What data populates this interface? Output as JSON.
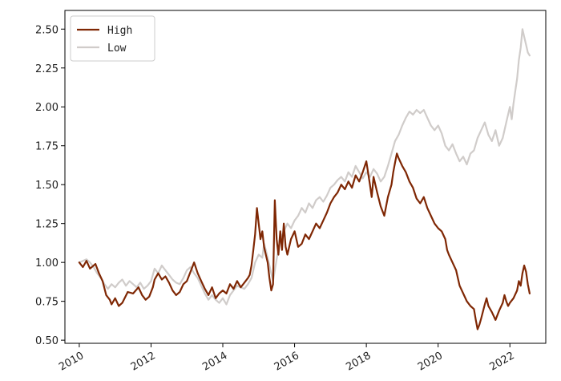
{
  "chart_data": {
    "type": "line",
    "title": "",
    "xlabel": "",
    "ylabel": "",
    "xlim": [
      2009.6,
      2023.0
    ],
    "ylim": [
      0.48,
      2.62
    ],
    "grid": false,
    "legend_position": "top-left",
    "x_ticks": [
      2010,
      2012,
      2014,
      2016,
      2018,
      2020,
      2022
    ],
    "x_tick_labels": [
      "2010",
      "2012",
      "2014",
      "2016",
      "2018",
      "2020",
      "2022"
    ],
    "y_ticks": [
      0.5,
      0.75,
      1.0,
      1.25,
      1.5,
      1.75,
      2.0,
      2.25,
      2.5
    ],
    "y_tick_labels": [
      "0.50",
      "0.75",
      "1.00",
      "1.25",
      "1.50",
      "1.75",
      "2.00",
      "2.25",
      "2.50"
    ],
    "series": [
      {
        "name": "High",
        "color": "#7f2704",
        "points": [
          [
            2010.0,
            1.0
          ],
          [
            2010.1,
            0.97
          ],
          [
            2010.2,
            1.01
          ],
          [
            2010.3,
            0.96
          ],
          [
            2010.45,
            0.99
          ],
          [
            2010.55,
            0.93
          ],
          [
            2010.65,
            0.88
          ],
          [
            2010.75,
            0.79
          ],
          [
            2010.85,
            0.76
          ],
          [
            2010.9,
            0.73
          ],
          [
            2011.0,
            0.77
          ],
          [
            2011.1,
            0.72
          ],
          [
            2011.2,
            0.74
          ],
          [
            2011.35,
            0.81
          ],
          [
            2011.5,
            0.8
          ],
          [
            2011.65,
            0.84
          ],
          [
            2011.75,
            0.79
          ],
          [
            2011.85,
            0.76
          ],
          [
            2011.95,
            0.78
          ],
          [
            2012.05,
            0.84
          ],
          [
            2012.1,
            0.89
          ],
          [
            2012.2,
            0.93
          ],
          [
            2012.3,
            0.89
          ],
          [
            2012.4,
            0.91
          ],
          [
            2012.5,
            0.87
          ],
          [
            2012.6,
            0.82
          ],
          [
            2012.7,
            0.79
          ],
          [
            2012.8,
            0.81
          ],
          [
            2012.9,
            0.86
          ],
          [
            2013.0,
            0.88
          ],
          [
            2013.1,
            0.94
          ],
          [
            2013.2,
            1.0
          ],
          [
            2013.3,
            0.93
          ],
          [
            2013.4,
            0.88
          ],
          [
            2013.5,
            0.83
          ],
          [
            2013.6,
            0.79
          ],
          [
            2013.7,
            0.84
          ],
          [
            2013.8,
            0.77
          ],
          [
            2013.9,
            0.8
          ],
          [
            2014.0,
            0.82
          ],
          [
            2014.1,
            0.8
          ],
          [
            2014.2,
            0.86
          ],
          [
            2014.3,
            0.83
          ],
          [
            2014.4,
            0.88
          ],
          [
            2014.5,
            0.84
          ],
          [
            2014.6,
            0.87
          ],
          [
            2014.7,
            0.9
          ],
          [
            2014.75,
            0.92
          ],
          [
            2014.8,
            0.98
          ],
          [
            2014.85,
            1.08
          ],
          [
            2014.9,
            1.18
          ],
          [
            2014.95,
            1.35
          ],
          [
            2015.0,
            1.25
          ],
          [
            2015.05,
            1.15
          ],
          [
            2015.1,
            1.2
          ],
          [
            2015.15,
            1.1
          ],
          [
            2015.2,
            1.05
          ],
          [
            2015.25,
            1.0
          ],
          [
            2015.3,
            0.9
          ],
          [
            2015.35,
            0.82
          ],
          [
            2015.4,
            0.86
          ],
          [
            2015.45,
            1.4
          ],
          [
            2015.5,
            1.15
          ],
          [
            2015.55,
            1.05
          ],
          [
            2015.6,
            1.2
          ],
          [
            2015.65,
            1.08
          ],
          [
            2015.7,
            1.25
          ],
          [
            2015.75,
            1.1
          ],
          [
            2015.8,
            1.05
          ],
          [
            2015.9,
            1.15
          ],
          [
            2016.0,
            1.2
          ],
          [
            2016.1,
            1.1
          ],
          [
            2016.2,
            1.12
          ],
          [
            2016.3,
            1.18
          ],
          [
            2016.4,
            1.15
          ],
          [
            2016.5,
            1.2
          ],
          [
            2016.6,
            1.25
          ],
          [
            2016.7,
            1.22
          ],
          [
            2016.8,
            1.27
          ],
          [
            2016.9,
            1.32
          ],
          [
            2017.0,
            1.38
          ],
          [
            2017.1,
            1.42
          ],
          [
            2017.2,
            1.45
          ],
          [
            2017.3,
            1.5
          ],
          [
            2017.4,
            1.47
          ],
          [
            2017.5,
            1.52
          ],
          [
            2017.6,
            1.48
          ],
          [
            2017.7,
            1.56
          ],
          [
            2017.8,
            1.52
          ],
          [
            2017.9,
            1.58
          ],
          [
            2018.0,
            1.65
          ],
          [
            2018.1,
            1.5
          ],
          [
            2018.15,
            1.42
          ],
          [
            2018.2,
            1.55
          ],
          [
            2018.3,
            1.45
          ],
          [
            2018.4,
            1.36
          ],
          [
            2018.5,
            1.3
          ],
          [
            2018.6,
            1.42
          ],
          [
            2018.7,
            1.5
          ],
          [
            2018.75,
            1.58
          ],
          [
            2018.8,
            1.64
          ],
          [
            2018.85,
            1.7
          ],
          [
            2018.9,
            1.67
          ],
          [
            2019.0,
            1.62
          ],
          [
            2019.1,
            1.58
          ],
          [
            2019.2,
            1.52
          ],
          [
            2019.3,
            1.48
          ],
          [
            2019.4,
            1.41
          ],
          [
            2019.5,
            1.38
          ],
          [
            2019.6,
            1.42
          ],
          [
            2019.7,
            1.35
          ],
          [
            2019.8,
            1.3
          ],
          [
            2019.9,
            1.25
          ],
          [
            2020.0,
            1.22
          ],
          [
            2020.1,
            1.2
          ],
          [
            2020.2,
            1.15
          ],
          [
            2020.25,
            1.08
          ],
          [
            2020.3,
            1.05
          ],
          [
            2020.4,
            1.0
          ],
          [
            2020.5,
            0.95
          ],
          [
            2020.55,
            0.9
          ],
          [
            2020.6,
            0.85
          ],
          [
            2020.7,
            0.8
          ],
          [
            2020.8,
            0.75
          ],
          [
            2020.9,
            0.72
          ],
          [
            2021.0,
            0.7
          ],
          [
            2021.05,
            0.63
          ],
          [
            2021.1,
            0.57
          ],
          [
            2021.15,
            0.6
          ],
          [
            2021.2,
            0.64
          ],
          [
            2021.3,
            0.73
          ],
          [
            2021.35,
            0.77
          ],
          [
            2021.4,
            0.72
          ],
          [
            2021.5,
            0.68
          ],
          [
            2021.6,
            0.63
          ],
          [
            2021.7,
            0.69
          ],
          [
            2021.8,
            0.74
          ],
          [
            2021.85,
            0.79
          ],
          [
            2021.9,
            0.75
          ],
          [
            2021.95,
            0.72
          ],
          [
            2022.0,
            0.74
          ],
          [
            2022.1,
            0.77
          ],
          [
            2022.2,
            0.82
          ],
          [
            2022.25,
            0.88
          ],
          [
            2022.3,
            0.85
          ],
          [
            2022.35,
            0.93
          ],
          [
            2022.4,
            0.98
          ],
          [
            2022.45,
            0.94
          ],
          [
            2022.5,
            0.86
          ],
          [
            2022.55,
            0.8
          ]
        ]
      },
      {
        "name": "Low",
        "color": "#d0ccca",
        "points": [
          [
            2010.0,
            1.0
          ],
          [
            2010.1,
            1.01
          ],
          [
            2010.2,
            1.02
          ],
          [
            2010.3,
            1.0
          ],
          [
            2010.4,
            0.97
          ],
          [
            2010.5,
            0.93
          ],
          [
            2010.6,
            0.9
          ],
          [
            2010.7,
            0.86
          ],
          [
            2010.8,
            0.83
          ],
          [
            2010.9,
            0.86
          ],
          [
            2011.0,
            0.84
          ],
          [
            2011.1,
            0.87
          ],
          [
            2011.2,
            0.89
          ],
          [
            2011.3,
            0.85
          ],
          [
            2011.4,
            0.88
          ],
          [
            2011.5,
            0.86
          ],
          [
            2011.6,
            0.84
          ],
          [
            2011.7,
            0.87
          ],
          [
            2011.8,
            0.83
          ],
          [
            2011.9,
            0.85
          ],
          [
            2012.0,
            0.88
          ],
          [
            2012.1,
            0.96
          ],
          [
            2012.2,
            0.93
          ],
          [
            2012.3,
            0.98
          ],
          [
            2012.4,
            0.95
          ],
          [
            2012.5,
            0.92
          ],
          [
            2012.6,
            0.89
          ],
          [
            2012.7,
            0.87
          ],
          [
            2012.8,
            0.86
          ],
          [
            2012.9,
            0.9
          ],
          [
            2013.0,
            0.95
          ],
          [
            2013.1,
            0.97
          ],
          [
            2013.2,
            0.93
          ],
          [
            2013.3,
            0.9
          ],
          [
            2013.4,
            0.85
          ],
          [
            2013.5,
            0.8
          ],
          [
            2013.6,
            0.76
          ],
          [
            2013.7,
            0.79
          ],
          [
            2013.8,
            0.76
          ],
          [
            2013.9,
            0.74
          ],
          [
            2014.0,
            0.77
          ],
          [
            2014.1,
            0.73
          ],
          [
            2014.2,
            0.79
          ],
          [
            2014.3,
            0.82
          ],
          [
            2014.4,
            0.85
          ],
          [
            2014.5,
            0.84
          ],
          [
            2014.6,
            0.83
          ],
          [
            2014.7,
            0.86
          ],
          [
            2014.8,
            0.9
          ],
          [
            2014.9,
            1.0
          ],
          [
            2015.0,
            1.05
          ],
          [
            2015.1,
            1.03
          ],
          [
            2015.15,
            1.12
          ],
          [
            2015.2,
            1.08
          ],
          [
            2015.3,
            0.98
          ],
          [
            2015.4,
            0.88
          ],
          [
            2015.5,
            1.02
          ],
          [
            2015.6,
            1.15
          ],
          [
            2015.7,
            1.2
          ],
          [
            2015.8,
            1.25
          ],
          [
            2015.9,
            1.22
          ],
          [
            2016.0,
            1.27
          ],
          [
            2016.1,
            1.3
          ],
          [
            2016.2,
            1.35
          ],
          [
            2016.3,
            1.32
          ],
          [
            2016.4,
            1.38
          ],
          [
            2016.5,
            1.35
          ],
          [
            2016.6,
            1.4
          ],
          [
            2016.7,
            1.42
          ],
          [
            2016.8,
            1.39
          ],
          [
            2016.9,
            1.43
          ],
          [
            2017.0,
            1.48
          ],
          [
            2017.1,
            1.5
          ],
          [
            2017.2,
            1.53
          ],
          [
            2017.3,
            1.55
          ],
          [
            2017.4,
            1.52
          ],
          [
            2017.5,
            1.58
          ],
          [
            2017.6,
            1.55
          ],
          [
            2017.7,
            1.62
          ],
          [
            2017.8,
            1.58
          ],
          [
            2017.9,
            1.54
          ],
          [
            2018.0,
            1.58
          ],
          [
            2018.1,
            1.55
          ],
          [
            2018.2,
            1.6
          ],
          [
            2018.3,
            1.57
          ],
          [
            2018.4,
            1.52
          ],
          [
            2018.5,
            1.55
          ],
          [
            2018.6,
            1.62
          ],
          [
            2018.7,
            1.7
          ],
          [
            2018.8,
            1.78
          ],
          [
            2018.9,
            1.82
          ],
          [
            2019.0,
            1.88
          ],
          [
            2019.1,
            1.93
          ],
          [
            2019.2,
            1.97
          ],
          [
            2019.3,
            1.95
          ],
          [
            2019.4,
            1.98
          ],
          [
            2019.5,
            1.96
          ],
          [
            2019.6,
            1.98
          ],
          [
            2019.7,
            1.93
          ],
          [
            2019.8,
            1.88
          ],
          [
            2019.9,
            1.85
          ],
          [
            2020.0,
            1.88
          ],
          [
            2020.1,
            1.83
          ],
          [
            2020.2,
            1.75
          ],
          [
            2020.3,
            1.72
          ],
          [
            2020.4,
            1.76
          ],
          [
            2020.5,
            1.7
          ],
          [
            2020.6,
            1.65
          ],
          [
            2020.7,
            1.68
          ],
          [
            2020.8,
            1.63
          ],
          [
            2020.9,
            1.7
          ],
          [
            2021.0,
            1.72
          ],
          [
            2021.1,
            1.8
          ],
          [
            2021.2,
            1.85
          ],
          [
            2021.3,
            1.9
          ],
          [
            2021.4,
            1.82
          ],
          [
            2021.5,
            1.78
          ],
          [
            2021.6,
            1.85
          ],
          [
            2021.7,
            1.75
          ],
          [
            2021.8,
            1.8
          ],
          [
            2021.9,
            1.9
          ],
          [
            2022.0,
            2.0
          ],
          [
            2022.05,
            1.92
          ],
          [
            2022.1,
            2.02
          ],
          [
            2022.15,
            2.1
          ],
          [
            2022.2,
            2.18
          ],
          [
            2022.25,
            2.3
          ],
          [
            2022.3,
            2.38
          ],
          [
            2022.35,
            2.5
          ],
          [
            2022.4,
            2.45
          ],
          [
            2022.45,
            2.4
          ],
          [
            2022.5,
            2.35
          ],
          [
            2022.55,
            2.33
          ]
        ]
      }
    ]
  }
}
